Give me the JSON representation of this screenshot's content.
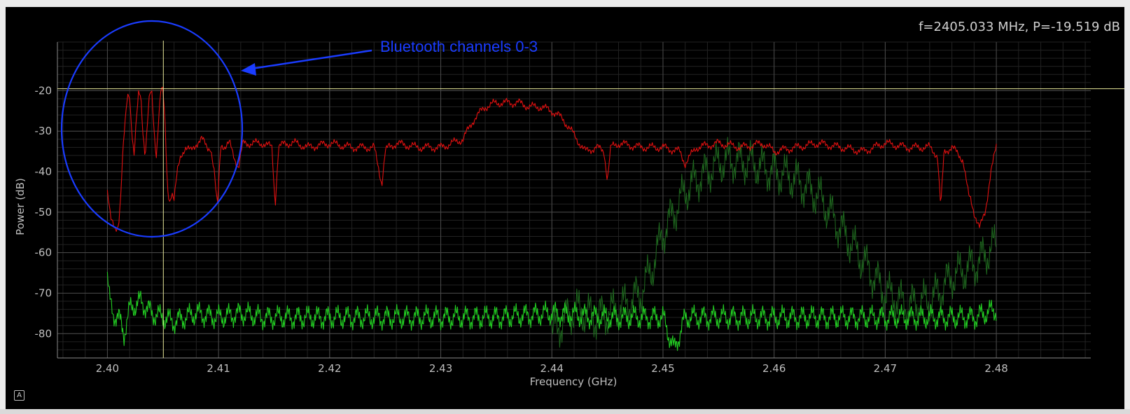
{
  "readout": "f=2405.033 MHz, P=-19.519 dB",
  "autoscale_label": "A",
  "annotation": {
    "text": "Bluetooth channels 0-3",
    "color": "#1a3cff"
  },
  "colors": {
    "background": "#000000",
    "grid_major": "#4a4a4a",
    "grid_minor": "#222222",
    "max_hold_trace": "#e01010",
    "live_trace": "#22cc22",
    "faded_trace": "#1f6a1f",
    "cursor": "#e8e89a",
    "axis_text": "#bfbfbf"
  },
  "chart_data": {
    "type": "line",
    "title": "",
    "xlabel": "Frequency (GHz)",
    "ylabel": "Power (dB)",
    "xlim": [
      2.3955,
      2.4885
    ],
    "ylim": [
      -86,
      -8
    ],
    "xticks": [
      2.4,
      2.41,
      2.42,
      2.43,
      2.44,
      2.45,
      2.46,
      2.47,
      2.48
    ],
    "xtick_labels": [
      "2.40",
      "2.41",
      "2.42",
      "2.43",
      "2.44",
      "2.45",
      "2.46",
      "2.47",
      "2.48"
    ],
    "yticks": [
      -20,
      -30,
      -40,
      -50,
      -60,
      -70,
      -80
    ],
    "ytick_labels": [
      "-20",
      "-30",
      "-40",
      "-50",
      "-60",
      "-70",
      "-80"
    ],
    "grid": true,
    "cursor": {
      "x": 2.405033,
      "y": -19.519
    },
    "series": [
      {
        "role": "max_hold",
        "x": [
          2.4,
          2.4003,
          2.4007,
          2.401,
          2.4012,
          2.4014,
          2.4016,
          2.4018,
          2.402,
          2.4022,
          2.4024,
          2.4026,
          2.4028,
          2.403,
          2.4032,
          2.4034,
          2.4036,
          2.4038,
          2.404,
          2.4042,
          2.4044,
          2.4046,
          2.4048,
          2.405,
          2.4052,
          2.4054,
          2.4056,
          2.4058,
          2.406,
          2.4063,
          2.4066,
          2.407,
          2.4075,
          2.408,
          2.4085,
          2.409,
          2.4093,
          2.4096,
          2.4099,
          2.4102,
          2.4106,
          2.411,
          2.4115,
          2.4118,
          2.4122,
          2.413,
          2.414,
          2.4148,
          2.4151,
          2.4154,
          2.416,
          2.417,
          2.418,
          2.42,
          2.422,
          2.424,
          2.4247,
          2.425,
          2.4253,
          2.426,
          2.428,
          2.43,
          2.431,
          2.432,
          2.433,
          2.434,
          2.435,
          2.436,
          2.437,
          2.438,
          2.439,
          2.44,
          2.441,
          2.442,
          2.4425,
          2.443,
          2.444,
          2.4447,
          2.445,
          2.4453,
          2.446,
          2.448,
          2.45,
          2.4515,
          2.452,
          2.453,
          2.455,
          2.457,
          2.459,
          2.46,
          2.462,
          2.464,
          2.466,
          2.468,
          2.47,
          2.472,
          2.474,
          2.4747,
          2.475,
          2.4753,
          2.476,
          2.477,
          2.4775,
          2.4777,
          2.478,
          2.4785,
          2.479,
          2.4795,
          2.48
        ],
        "y": [
          -45,
          -52,
          -54,
          -53,
          -46,
          -35,
          -28,
          -21,
          -21,
          -30,
          -36,
          -28,
          -21,
          -21,
          -30,
          -36,
          -28,
          -21,
          -21,
          -30,
          -36,
          -27,
          -20,
          -20,
          -29,
          -44,
          -47,
          -45,
          -47,
          -40,
          -36,
          -34,
          -35,
          -33,
          -32,
          -34,
          -34,
          -40,
          -49,
          -33,
          -34,
          -33,
          -37,
          -39,
          -33,
          -33,
          -33,
          -34,
          -48,
          -34,
          -33,
          -33,
          -34,
          -33,
          -34,
          -34,
          -43,
          -35,
          -34,
          -33,
          -34,
          -34,
          -33,
          -32,
          -27,
          -24,
          -23,
          -23,
          -23,
          -24,
          -24,
          -25,
          -27,
          -31,
          -33,
          -35,
          -34,
          -35,
          -42,
          -34,
          -33,
          -34,
          -34,
          -35,
          -38,
          -34,
          -33,
          -34,
          -33,
          -35,
          -34,
          -33,
          -34,
          -35,
          -33,
          -34,
          -34,
          -36,
          -49,
          -35,
          -34,
          -37,
          -46,
          -47,
          -50,
          -54,
          -50,
          -40,
          -34
        ]
      },
      {
        "role": "live",
        "x": [
          2.4,
          2.4002,
          2.4005,
          2.401,
          2.4015,
          2.402,
          2.403,
          2.404,
          2.405,
          2.406,
          2.408,
          2.41,
          2.412,
          2.414,
          2.416,
          2.42,
          2.425,
          2.43,
          2.435,
          2.44,
          2.445,
          2.45,
          2.451,
          2.452,
          2.455,
          2.46,
          2.465,
          2.47,
          2.475,
          2.478,
          2.48
        ],
        "y": [
          -66,
          -72,
          -75,
          -76,
          -80,
          -74,
          -72,
          -75,
          -76,
          -77,
          -75,
          -76,
          -75,
          -76,
          -76,
          -76,
          -76,
          -76,
          -76,
          -75,
          -76,
          -76,
          -84,
          -76,
          -76,
          -76,
          -76,
          -76,
          -76,
          -76,
          -74
        ]
      },
      {
        "role": "faded",
        "x": [
          2.44,
          2.442,
          2.444,
          2.446,
          2.448,
          2.449,
          2.45,
          2.451,
          2.452,
          2.453,
          2.454,
          2.455,
          2.456,
          2.458,
          2.46,
          2.462,
          2.464,
          2.465,
          2.466,
          2.467,
          2.468,
          2.47,
          2.472,
          2.474,
          2.476,
          2.478,
          2.48
        ],
        "y": [
          -80,
          -74,
          -76,
          -74,
          -70,
          -64,
          -55,
          -50,
          -45,
          -42,
          -40,
          -38,
          -37,
          -38,
          -40,
          -42,
          -46,
          -50,
          -54,
          -58,
          -62,
          -70,
          -73,
          -72,
          -66,
          -63,
          -58
        ]
      }
    ]
  }
}
